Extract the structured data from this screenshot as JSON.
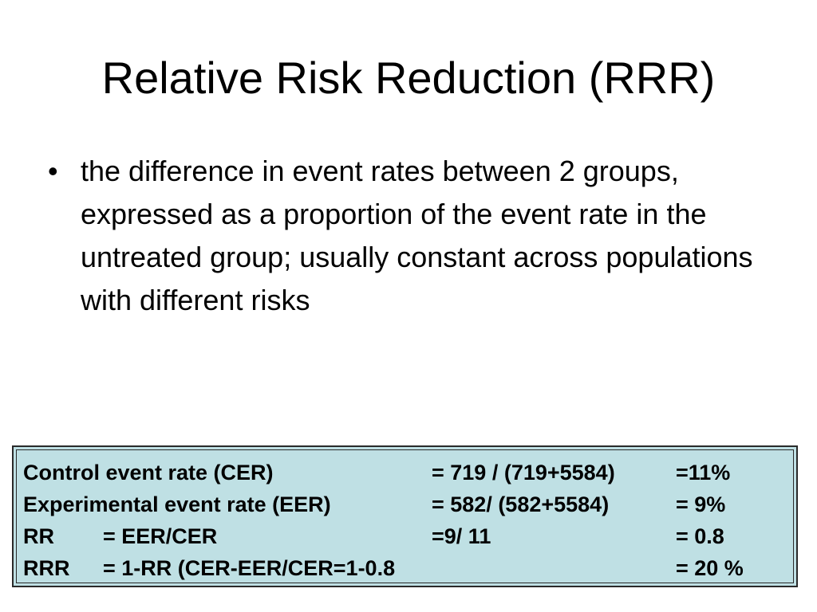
{
  "slide": {
    "title": "Relative Risk Reduction (RRR)",
    "bullets": [
      {
        "marker": "•",
        "text": "the difference in event rates between 2 groups, expressed as a proportion of the event rate in the untreated group; usually constant across populations with different risks"
      }
    ]
  },
  "calc_box": {
    "background_color": "#bfe0e4",
    "rows": [
      {
        "label": "Control event rate (CER)",
        "formula": "= 719 / (719+5584)",
        "result": "=11%"
      },
      {
        "label": "Experimental event rate (EER)",
        "formula": "= 582/ (582+5584)",
        "result": "= 9%"
      },
      {
        "abbr": "RR",
        "label": "= EER/CER",
        "formula": "=9/ 11",
        "result": "= 0.8"
      },
      {
        "abbr": "RRR",
        "label": "= 1-RR (CER-EER/CER=1-0.8",
        "formula": "",
        "result": "= 20 %"
      }
    ]
  }
}
